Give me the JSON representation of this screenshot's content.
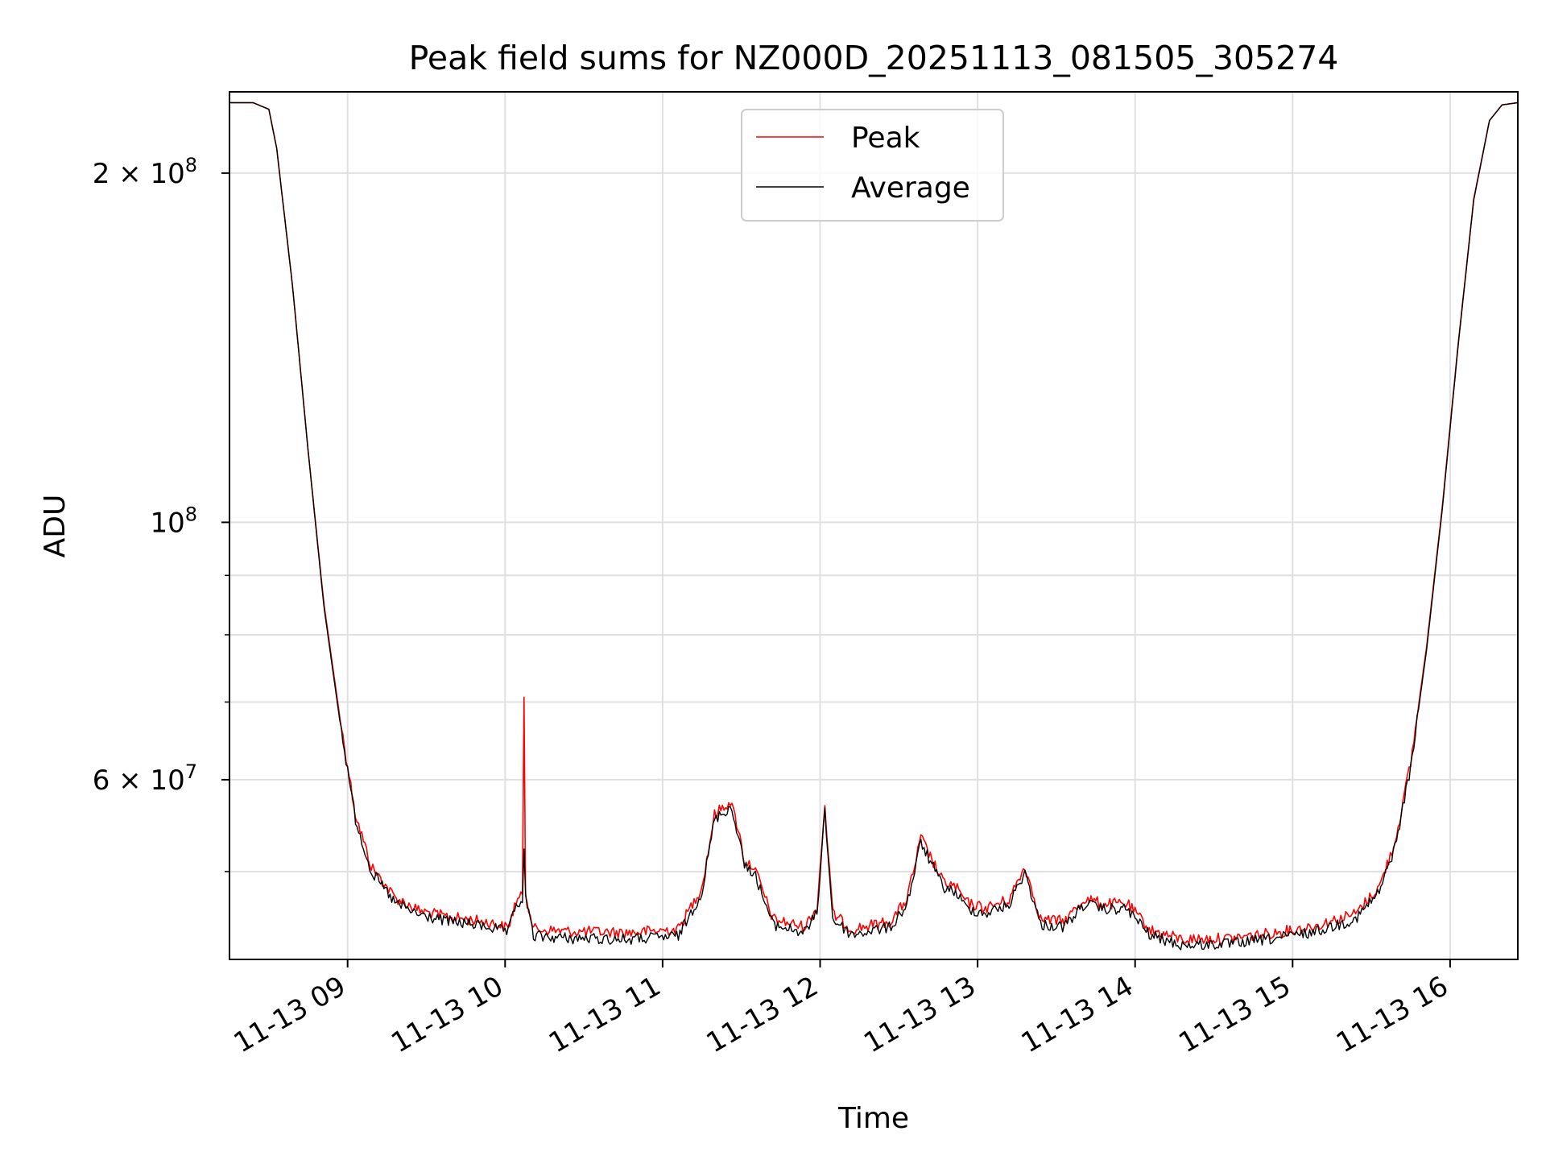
{
  "chart_data": {
    "type": "line",
    "title": "Peak field sums for NZ000D_20251113_081505_305274",
    "xlabel": "Time",
    "ylabel": "ADU",
    "y_scale": "log",
    "grid": true,
    "legend_position": "upper-center",
    "x_range_hours": [
      8.25,
      16.43
    ],
    "ylim": [
      42000000,
      235000000
    ],
    "x_ticks": [
      {
        "hour": 9,
        "label": "11-13 09"
      },
      {
        "hour": 10,
        "label": "11-13 10"
      },
      {
        "hour": 11,
        "label": "11-13 11"
      },
      {
        "hour": 12,
        "label": "11-13 12"
      },
      {
        "hour": 13,
        "label": "11-13 13"
      },
      {
        "hour": 14,
        "label": "11-13 14"
      },
      {
        "hour": 15,
        "label": "11-13 15"
      },
      {
        "hour": 16,
        "label": "11-13 16"
      }
    ],
    "y_major_ticks": [
      {
        "value": 200000000,
        "mantissa": "2",
        "exponent": "8"
      },
      {
        "value": 100000000,
        "mantissa": "",
        "exponent": "8"
      },
      {
        "value": 60000000,
        "mantissa": "6",
        "exponent": "7"
      }
    ],
    "y_minor_ticks": [
      50000000,
      70000000,
      80000000,
      90000000
    ],
    "series": [
      {
        "name": "Peak",
        "color": "#ff0000",
        "points": [
          [
            8.25,
            230000000
          ],
          [
            8.4,
            230000000
          ],
          [
            8.5,
            227000000
          ],
          [
            8.55,
            210000000
          ],
          [
            8.65,
            160000000
          ],
          [
            8.75,
            115000000
          ],
          [
            8.85,
            85000000
          ],
          [
            8.95,
            68000000
          ],
          [
            9.05,
            56000000
          ],
          [
            9.15,
            50500000
          ],
          [
            9.3,
            47500000
          ],
          [
            9.45,
            46300000
          ],
          [
            9.6,
            45800000
          ],
          [
            9.75,
            45500000
          ],
          [
            9.9,
            45200000
          ],
          [
            10.02,
            44700000
          ],
          [
            10.07,
            47200000
          ],
          [
            10.11,
            47600000
          ],
          [
            10.12,
            71000000
          ],
          [
            10.13,
            48000000
          ],
          [
            10.18,
            44600000
          ],
          [
            10.4,
            44400000
          ],
          [
            10.8,
            44300000
          ],
          [
            11.1,
            44600000
          ],
          [
            11.25,
            48500000
          ],
          [
            11.33,
            56000000
          ],
          [
            11.43,
            57500000
          ],
          [
            11.48,
            54500000
          ],
          [
            11.52,
            51000000
          ],
          [
            11.58,
            50500000
          ],
          [
            11.7,
            45500000
          ],
          [
            11.9,
            44800000
          ],
          [
            11.98,
            46500000
          ],
          [
            12.03,
            57000000
          ],
          [
            12.08,
            46000000
          ],
          [
            12.2,
            44600000
          ],
          [
            12.45,
            45300000
          ],
          [
            12.55,
            47300000
          ],
          [
            12.6,
            50500000
          ],
          [
            12.64,
            53500000
          ],
          [
            12.7,
            51500000
          ],
          [
            12.78,
            49000000
          ],
          [
            12.86,
            48500000
          ],
          [
            12.93,
            47000000
          ],
          [
            13.05,
            46500000
          ],
          [
            13.2,
            47300000
          ],
          [
            13.3,
            50500000
          ],
          [
            13.4,
            45500000
          ],
          [
            13.55,
            45300000
          ],
          [
            13.68,
            47400000
          ],
          [
            13.8,
            46900000
          ],
          [
            13.95,
            46900000
          ],
          [
            14.1,
            44500000
          ],
          [
            14.3,
            43700000
          ],
          [
            14.6,
            43800000
          ],
          [
            14.9,
            44300000
          ],
          [
            15.15,
            44900000
          ],
          [
            15.4,
            46000000
          ],
          [
            15.55,
            48500000
          ],
          [
            15.65,
            53000000
          ],
          [
            15.75,
            62000000
          ],
          [
            15.85,
            78000000
          ],
          [
            15.95,
            103000000
          ],
          [
            16.05,
            142000000
          ],
          [
            16.15,
            190000000
          ],
          [
            16.25,
            222000000
          ],
          [
            16.33,
            229000000
          ],
          [
            16.43,
            230000000
          ]
        ]
      },
      {
        "name": "Average",
        "color": "#000000",
        "points": [
          [
            8.25,
            230000000
          ],
          [
            8.4,
            230000000
          ],
          [
            8.5,
            227000000
          ],
          [
            8.55,
            210000000
          ],
          [
            8.65,
            160000000
          ],
          [
            8.75,
            115000000
          ],
          [
            8.85,
            84500000
          ],
          [
            8.95,
            67500000
          ],
          [
            9.05,
            55500000
          ],
          [
            9.15,
            50000000
          ],
          [
            9.3,
            47000000
          ],
          [
            9.45,
            45900000
          ],
          [
            9.6,
            45400000
          ],
          [
            9.75,
            45100000
          ],
          [
            9.9,
            44800000
          ],
          [
            10.02,
            44300000
          ],
          [
            10.07,
            46800000
          ],
          [
            10.11,
            47200000
          ],
          [
            10.12,
            52000000
          ],
          [
            10.13,
            47500000
          ],
          [
            10.18,
            44000000
          ],
          [
            10.4,
            43800000
          ],
          [
            10.8,
            43700000
          ],
          [
            11.1,
            44000000
          ],
          [
            11.25,
            48000000
          ],
          [
            11.33,
            55500000
          ],
          [
            11.43,
            56800000
          ],
          [
            11.48,
            54000000
          ],
          [
            11.52,
            50500000
          ],
          [
            11.58,
            50000000
          ],
          [
            11.7,
            45000000
          ],
          [
            11.9,
            44300000
          ],
          [
            11.98,
            46000000
          ],
          [
            12.03,
            56500000
          ],
          [
            12.08,
            45500000
          ],
          [
            12.2,
            44100000
          ],
          [
            12.45,
            44800000
          ],
          [
            12.55,
            46800000
          ],
          [
            12.6,
            50000000
          ],
          [
            12.64,
            53000000
          ],
          [
            12.7,
            51000000
          ],
          [
            12.78,
            48500000
          ],
          [
            12.86,
            48000000
          ],
          [
            12.93,
            46500000
          ],
          [
            13.05,
            46000000
          ],
          [
            13.2,
            46800000
          ],
          [
            13.3,
            50000000
          ],
          [
            13.4,
            45000000
          ],
          [
            13.55,
            44800000
          ],
          [
            13.68,
            46900000
          ],
          [
            13.8,
            46400000
          ],
          [
            13.95,
            46400000
          ],
          [
            14.1,
            44000000
          ],
          [
            14.3,
            43200000
          ],
          [
            14.6,
            43300000
          ],
          [
            14.9,
            43800000
          ],
          [
            15.15,
            44400000
          ],
          [
            15.4,
            45500000
          ],
          [
            15.55,
            48000000
          ],
          [
            15.65,
            52500000
          ],
          [
            15.75,
            61500000
          ],
          [
            15.85,
            77500000
          ],
          [
            15.95,
            102500000
          ],
          [
            16.05,
            141500000
          ],
          [
            16.15,
            189500000
          ],
          [
            16.25,
            222000000
          ],
          [
            16.33,
            229000000
          ],
          [
            16.43,
            230000000
          ]
        ]
      }
    ]
  }
}
